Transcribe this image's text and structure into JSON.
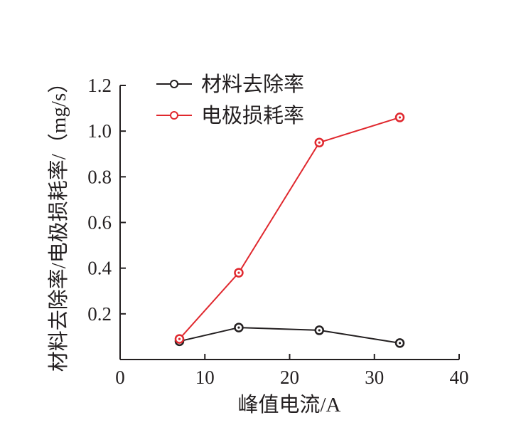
{
  "chart_data": {
    "type": "line",
    "title": "",
    "xlabel": "峰值电流/A",
    "ylabel": "材料去除率/电极损耗率/（mg/s）",
    "xlim": [
      0,
      40
    ],
    "ylim": [
      0,
      1.2
    ],
    "xticks": [
      0,
      10,
      20,
      30,
      40
    ],
    "yticks": [
      0.2,
      0.4,
      0.6,
      0.8,
      1.0,
      1.2
    ],
    "xtick_labels": [
      "0",
      "10",
      "20",
      "30",
      "40"
    ],
    "ytick_labels": [
      "0.2",
      "0.4",
      "0.6",
      "0.8",
      "1.0",
      "1.2"
    ],
    "grid": false,
    "legend_position": "top-left",
    "series": [
      {
        "name": "材料去除率",
        "color": "#231f20",
        "x": [
          7,
          14,
          23.5,
          33
        ],
        "y": [
          0.08,
          0.14,
          0.128,
          0.072
        ]
      },
      {
        "name": "电极损耗率",
        "color": "#e0282e",
        "x": [
          7,
          14,
          23.5,
          33
        ],
        "y": [
          0.09,
          0.38,
          0.95,
          1.06
        ]
      }
    ]
  }
}
